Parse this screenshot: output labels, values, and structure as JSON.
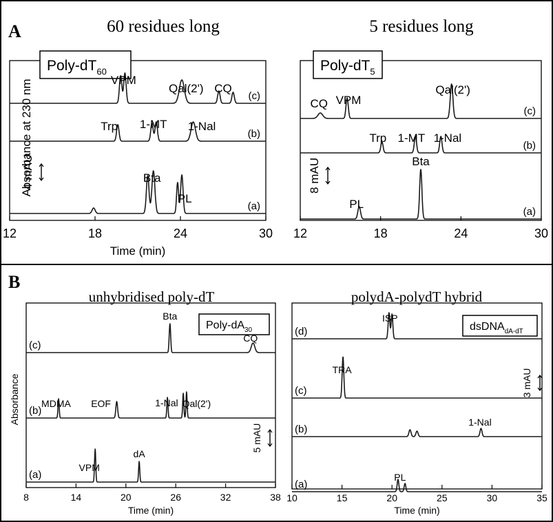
{
  "figure": {
    "panel_a_letter": "A",
    "panel_b_letter": "B"
  },
  "chart_data": [
    {
      "type": "line",
      "panel": "A",
      "title": "60 residues long",
      "legend_box": {
        "main": "Poly-dT",
        "sub": "60"
      },
      "ylabel": "Absorbance at 230 nm",
      "xlabel": "Time (min)",
      "xlim": [
        12,
        30
      ],
      "x_ticks": [
        12,
        18,
        24,
        30
      ],
      "scale_bar": "4 mAU",
      "series": [
        {
          "label": "(c)",
          "peaks": [
            {
              "t": 19.8,
              "h": 40,
              "w": 0.12
            },
            {
              "t": 20.1,
              "h": 44,
              "w": 0.12
            },
            {
              "t": 24.1,
              "h": 34,
              "w": 0.25
            },
            {
              "t": 26.7,
              "h": 18,
              "w": 0.12
            },
            {
              "t": 27.7,
              "h": 16,
              "w": 0.12
            }
          ]
        },
        {
          "label": "(b)",
          "peaks": [
            {
              "t": 19.6,
              "h": 24,
              "w": 0.12
            },
            {
              "t": 22.0,
              "h": 26,
              "w": 0.12
            },
            {
              "t": 22.3,
              "h": 28,
              "w": 0.12
            },
            {
              "t": 24.9,
              "h": 28,
              "w": 0.22
            }
          ]
        },
        {
          "label": "(a)",
          "peaks": [
            {
              "t": 17.9,
              "h": 8,
              "w": 0.15
            },
            {
              "t": 21.7,
              "h": 55,
              "w": 0.13
            },
            {
              "t": 22.1,
              "h": 62,
              "w": 0.15
            },
            {
              "t": 23.8,
              "h": 45,
              "w": 0.1
            },
            {
              "t": 24.1,
              "h": 56,
              "w": 0.12
            }
          ]
        }
      ],
      "peak_labels": [
        {
          "text": "VPM",
          "t": 20.0,
          "trace": 0,
          "sub": ""
        },
        {
          "text": "Qal(2')",
          "t": 24.4,
          "trace": 0,
          "sub": ""
        },
        {
          "text": "CQ",
          "t": 27.0,
          "trace": 0,
          "sub": ""
        },
        {
          "text": "Trp",
          "t": 19.0,
          "trace": 1,
          "sub": ""
        },
        {
          "text": "1-MT",
          "t": 22.1,
          "trace": 1,
          "sub": ""
        },
        {
          "text": "1-Nal",
          "t": 25.5,
          "trace": 1,
          "sub": ""
        },
        {
          "text": "Bta",
          "t": 22.0,
          "trace": 2,
          "sub": ""
        },
        {
          "text": "PL",
          "t": 24.3,
          "trace": 2,
          "sub": ""
        }
      ]
    },
    {
      "type": "line",
      "panel": "A",
      "title": "5 residues long",
      "legend_box": {
        "main": "Poly-dT",
        "sub": "5"
      },
      "xlabel": "",
      "xlim": [
        12,
        30
      ],
      "x_ticks": [
        12,
        18,
        24,
        30
      ],
      "scale_bar": "8 mAU",
      "series": [
        {
          "label": "(c)",
          "peaks": [
            {
              "t": 13.5,
              "h": 8,
              "w": 0.25
            },
            {
              "t": 15.5,
              "h": 30,
              "w": 0.12
            },
            {
              "t": 23.3,
              "h": 50,
              "w": 0.14
            }
          ]
        },
        {
          "label": "(b)",
          "peaks": [
            {
              "t": 18.1,
              "h": 16,
              "w": 0.12
            },
            {
              "t": 20.6,
              "h": 24,
              "w": 0.12
            },
            {
              "t": 22.5,
              "h": 24,
              "w": 0.12
            }
          ]
        },
        {
          "label": "(a)",
          "peaks": [
            {
              "t": 16.4,
              "h": 18,
              "w": 0.14
            },
            {
              "t": 21.0,
              "h": 72,
              "w": 0.12
            }
          ]
        }
      ],
      "peak_labels": [
        {
          "text": "CQ",
          "t": 13.4,
          "trace": 0,
          "sub": ""
        },
        {
          "text": "VPM",
          "t": 15.6,
          "trace": 0,
          "sub": ""
        },
        {
          "text": "Qal(2')",
          "t": 23.4,
          "trace": 0,
          "sub": ""
        },
        {
          "text": "Trp",
          "t": 17.8,
          "trace": 1,
          "sub": ""
        },
        {
          "text": "1-MT",
          "t": 20.3,
          "trace": 1,
          "sub": ""
        },
        {
          "text": "1-Nal",
          "t": 23.0,
          "trace": 1,
          "sub": ""
        },
        {
          "text": "PL",
          "t": 16.2,
          "trace": 2,
          "sub": ""
        },
        {
          "text": "Bta",
          "t": 21.0,
          "trace": 2,
          "sub": ""
        }
      ]
    },
    {
      "type": "line",
      "panel": "B",
      "title": "unhybridised poly-dT",
      "legend_box": {
        "main": "Poly-dA",
        "sub": "30"
      },
      "ylabel": "Absorbance",
      "xlabel": "Time (min)",
      "xlim": [
        8,
        38
      ],
      "x_ticks": [
        8,
        14,
        20,
        26,
        32,
        38
      ],
      "scale_bar": "5 mAU",
      "series": [
        {
          "label": "(c)",
          "peaks": [
            {
              "t": 25.3,
              "h": 42,
              "w": 0.12
            },
            {
              "t": 35.3,
              "h": 14,
              "w": 0.3
            }
          ]
        },
        {
          "label": "(b)",
          "peaks": [
            {
              "t": 11.9,
              "h": 28,
              "w": 0.1
            },
            {
              "t": 18.9,
              "h": 24,
              "w": 0.15
            },
            {
              "t": 25.0,
              "h": 30,
              "w": 0.1
            },
            {
              "t": 26.9,
              "h": 36,
              "w": 0.1
            },
            {
              "t": 27.3,
              "h": 38,
              "w": 0.1
            }
          ]
        },
        {
          "label": "(a)",
          "peaks": [
            {
              "t": 16.3,
              "h": 48,
              "w": 0.1
            },
            {
              "t": 21.6,
              "h": 30,
              "w": 0.1
            }
          ]
        }
      ],
      "peak_labels": [
        {
          "text": "Bta",
          "t": 25.3,
          "trace": 0,
          "sub": ""
        },
        {
          "text": "CQ",
          "t": 35.0,
          "trace": 0,
          "sub": ""
        },
        {
          "text": "MDMA",
          "t": 11.6,
          "trace": 1,
          "sub": ""
        },
        {
          "text": "EOF",
          "t": 17.0,
          "trace": 1,
          "sub": ""
        },
        {
          "text": "1-Nal",
          "t": 24.9,
          "trace": 1,
          "sub": ""
        },
        {
          "text": "Qal(2')",
          "t": 28.5,
          "trace": 1,
          "sub": ""
        },
        {
          "text": "VPM",
          "t": 15.6,
          "trace": 2,
          "sub": ""
        },
        {
          "text": "dA",
          "t": 21.6,
          "trace": 2,
          "sub": ""
        }
      ]
    },
    {
      "type": "line",
      "panel": "B",
      "title": "polydA-polydT hybrid",
      "legend_box": {
        "main": "dsDNA",
        "sub": "dA-dT"
      },
      "xlabel": "Time (min)",
      "xlim": [
        10,
        35
      ],
      "x_ticks": [
        10,
        15,
        20,
        25,
        30,
        35
      ],
      "scale_bar": "3 mAU",
      "series": [
        {
          "label": "(d)",
          "peaks": [
            {
              "t": 19.7,
              "h": 38,
              "w": 0.12
            },
            {
              "t": 20.0,
              "h": 36,
              "w": 0.12
            }
          ]
        },
        {
          "label": "(c)",
          "peaks": [
            {
              "t": 15.1,
              "h": 60,
              "w": 0.12
            }
          ]
        },
        {
          "label": "(b)",
          "peaks": [
            {
              "t": 21.8,
              "h": 10,
              "w": 0.15
            },
            {
              "t": 22.5,
              "h": 8,
              "w": 0.15
            },
            {
              "t": 28.9,
              "h": 12,
              "w": 0.14
            }
          ]
        },
        {
          "label": "(a)",
          "peaks": [
            {
              "t": 20.6,
              "h": 18,
              "w": 0.12
            },
            {
              "t": 21.3,
              "h": 12,
              "w": 0.12
            }
          ]
        }
      ],
      "peak_labels": [
        {
          "text": "ISP",
          "t": 19.8,
          "trace": 0,
          "sub": ""
        },
        {
          "text": "TRA",
          "t": 15.0,
          "trace": 1,
          "sub": ""
        },
        {
          "text": "1-Nal",
          "t": 28.8,
          "trace": 2,
          "sub": ""
        },
        {
          "text": "PL",
          "t": 20.8,
          "trace": 3,
          "sub": ""
        }
      ]
    }
  ]
}
